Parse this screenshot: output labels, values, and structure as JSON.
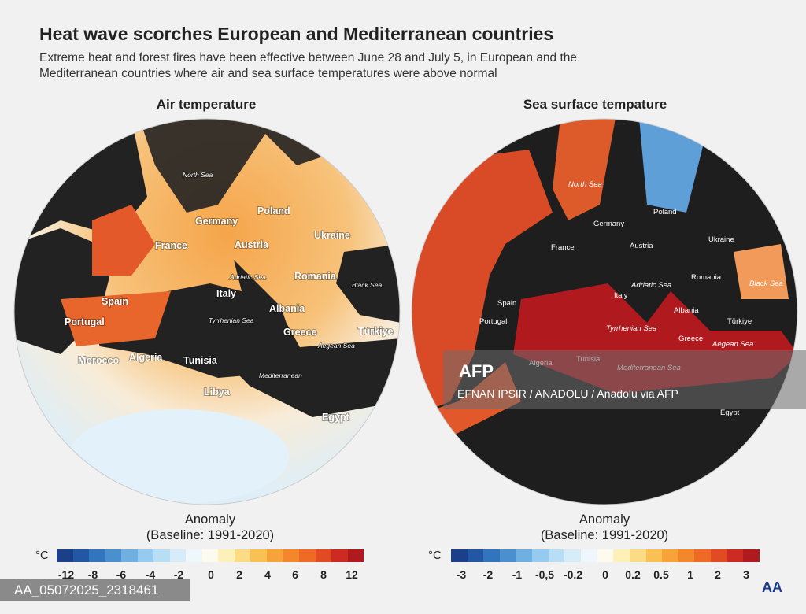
{
  "title": "Heat wave scorches European and Mediterranean countries",
  "subtitle": "Extreme heat and forest fires have been effective between June 28 and July 5, in European and the Mediterranean countries where air and sea surface temperatures were above normal",
  "left_map": {
    "title": "Air temperature",
    "labels": [
      "North Sea",
      "Germany",
      "Poland",
      "Ukraine",
      "France",
      "Austria",
      "Romania",
      "Black Sea",
      "Adriatic Sea",
      "Italy",
      "Spain",
      "Albania",
      "Portugal",
      "Tyrrhenian Sea",
      "Greece",
      "Türkiye",
      "Aegean Sea",
      "Morocco",
      "Algeria",
      "Tunisia",
      "Mediterranean",
      "Libya",
      "Egypt"
    ],
    "legend": {
      "title": "Anomaly",
      "baseline": "(Baseline: 1991-2020)",
      "unit": "°C",
      "ticks": [
        "-12",
        "-8",
        "-6",
        "-4",
        "-2",
        "0",
        "2",
        "4",
        "6",
        "8",
        "12"
      ]
    }
  },
  "right_map": {
    "title": "Sea surface tempature",
    "labels": [
      "North Sea",
      "Poland",
      "Germany",
      "Ukraine",
      "France",
      "Austria",
      "Romania",
      "Black Sea",
      "Spain",
      "Italy",
      "Adriatic Sea",
      "Albania",
      "Türkiye",
      "Portugal",
      "Tyrrhenian Sea",
      "Greece",
      "Aegean Sea",
      "Algeria",
      "Tunisia",
      "Mediterranean Sea",
      "Egypt"
    ],
    "legend": {
      "title": "Anomaly",
      "baseline": "(Baseline: 1991-2020)",
      "unit": "°C",
      "ticks": [
        "-3",
        "-2",
        "-1",
        "-0,5",
        "-0.2",
        "0",
        "0.2",
        "0.5",
        "1",
        "2",
        "3"
      ]
    }
  },
  "legend_colors": [
    "#1c3f8a",
    "#2357a5",
    "#3274bd",
    "#4a90cf",
    "#6fb0e0",
    "#96cbef",
    "#b8def5",
    "#d6ecf9",
    "#eef7fc",
    "#fdfbf0",
    "#fdf0b8",
    "#fbdb84",
    "#f9c054",
    "#f7a33a",
    "#f4862c",
    "#ee6a25",
    "#e14a23",
    "#cc2a22",
    "#b01a1e"
  ],
  "watermark": "AA_05072025_2318461",
  "photo_credit": {
    "logo": "AFP",
    "credit": "EFNAN IPSIR / ANADOLU / Anadolu via AFP"
  },
  "agency_logo": "AA"
}
